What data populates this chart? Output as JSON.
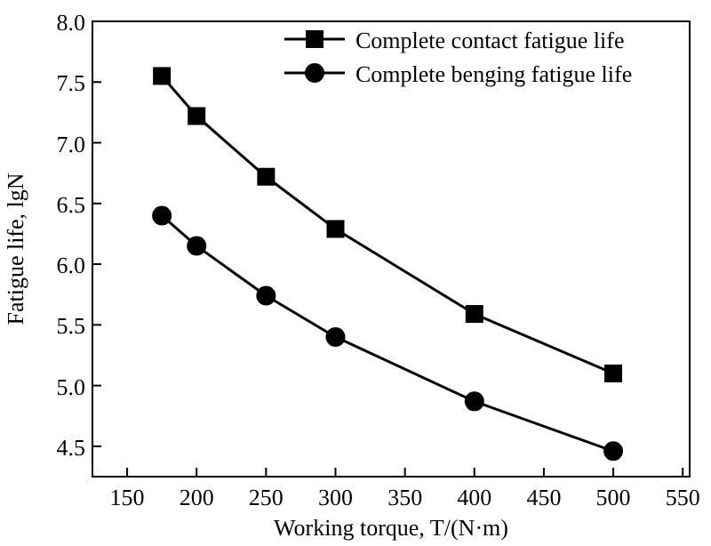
{
  "chart_data": {
    "type": "line",
    "xlabel": "Working torque, T/(N·m)",
    "ylabel": "Fatigue life, lgN",
    "x": [
      175,
      200,
      250,
      300,
      400,
      500
    ],
    "series": [
      {
        "name": "Complete contact fatigue life",
        "color": "#000000",
        "marker": "square",
        "values": [
          7.55,
          7.22,
          6.72,
          6.29,
          5.59,
          5.1
        ]
      },
      {
        "name": "Complete benging fatigue life",
        "color": "#000000",
        "marker": "circle",
        "values": [
          6.4,
          6.15,
          5.74,
          5.4,
          4.87,
          4.46
        ]
      }
    ],
    "xlim": [
      125,
      555
    ],
    "xticks": [
      150,
      200,
      250,
      300,
      350,
      400,
      450,
      500,
      550
    ],
    "ylim": [
      4.25,
      8.0
    ],
    "yticks": [
      {
        "value": 4.5,
        "label": "4.5"
      },
      {
        "value": 5,
        "label": "5.0"
      },
      {
        "value": 5.5,
        "label": "5.5"
      },
      {
        "value": 6,
        "label": "6.0"
      },
      {
        "value": 6.5,
        "label": "6.5"
      },
      {
        "value": 7,
        "label": "7.0"
      },
      {
        "value": 7.5,
        "label": "7.5"
      },
      {
        "value": 8,
        "label": "8.0"
      }
    ],
    "grid": false,
    "legend": "top right",
    "line_style": "solid"
  }
}
